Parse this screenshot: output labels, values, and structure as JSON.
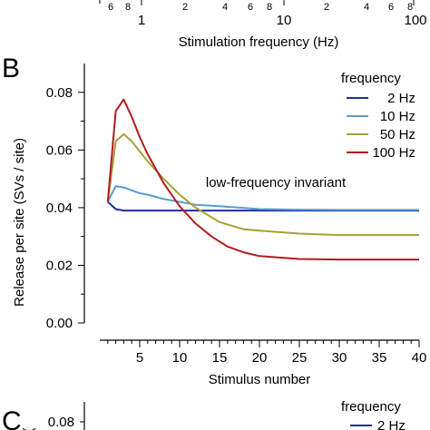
{
  "top_axis": {
    "minor_tick_labels": [
      "6",
      "8",
      "2",
      "4",
      "6",
      "8",
      "2",
      "4",
      "6",
      "8"
    ],
    "major_tick_labels": [
      "1",
      "10",
      "100"
    ],
    "xlabel": "Stimulation frequency (Hz)"
  },
  "panel_b": {
    "letter": "B",
    "annotation": "low-frequency invariant"
  },
  "panel_c": {
    "letter": "C",
    "ytick": "0.08",
    "legend_title": "frequency",
    "legend_first": "2 Hz"
  },
  "chart_data": {
    "type": "line",
    "xlabel": "Stimulus number",
    "ylabel": "Release per site (SVs / site)",
    "xlim": [
      0,
      40
    ],
    "ylim": [
      0,
      0.09
    ],
    "xticks": [
      5,
      10,
      15,
      20,
      25,
      30,
      35,
      40
    ],
    "yticks": [
      "0.00",
      "0.02",
      "0.04",
      "0.06",
      "0.08"
    ],
    "legend_title": "frequency",
    "legend_position": "top-right",
    "grid": false,
    "series": [
      {
        "name": "2 Hz",
        "color": "#1c2e9c",
        "x": [
          1,
          2,
          3,
          4,
          5,
          10,
          20,
          30,
          40
        ],
        "y": [
          0.042,
          0.0395,
          0.039,
          0.039,
          0.039,
          0.039,
          0.039,
          0.039,
          0.039
        ]
      },
      {
        "name": "10 Hz",
        "color": "#5b9bd5",
        "x": [
          1,
          2,
          3,
          4,
          5,
          6,
          8,
          10,
          12,
          15,
          20,
          25,
          30,
          35,
          40
        ],
        "y": [
          0.042,
          0.0475,
          0.047,
          0.046,
          0.045,
          0.0445,
          0.043,
          0.042,
          0.041,
          0.0405,
          0.0395,
          0.0393,
          0.0392,
          0.0392,
          0.0392
        ]
      },
      {
        "name": "50 Hz",
        "color": "#a8a032",
        "x": [
          1,
          2,
          3,
          4,
          5,
          6,
          8,
          10,
          12,
          15,
          18,
          20,
          25,
          30,
          35,
          40
        ],
        "y": [
          0.042,
          0.063,
          0.0655,
          0.063,
          0.0595,
          0.056,
          0.05,
          0.0445,
          0.04,
          0.035,
          0.0325,
          0.032,
          0.031,
          0.0305,
          0.0305,
          0.0305
        ]
      },
      {
        "name": "100 Hz",
        "color": "#b01c22",
        "x": [
          1,
          2,
          3,
          4,
          5,
          6,
          8,
          10,
          12,
          14,
          16,
          18,
          20,
          25,
          30,
          35,
          40
        ],
        "y": [
          0.042,
          0.0735,
          0.0775,
          0.0715,
          0.0645,
          0.0585,
          0.0485,
          0.0405,
          0.0345,
          0.03,
          0.0265,
          0.0245,
          0.0232,
          0.0222,
          0.022,
          0.022,
          0.022
        ]
      }
    ]
  }
}
